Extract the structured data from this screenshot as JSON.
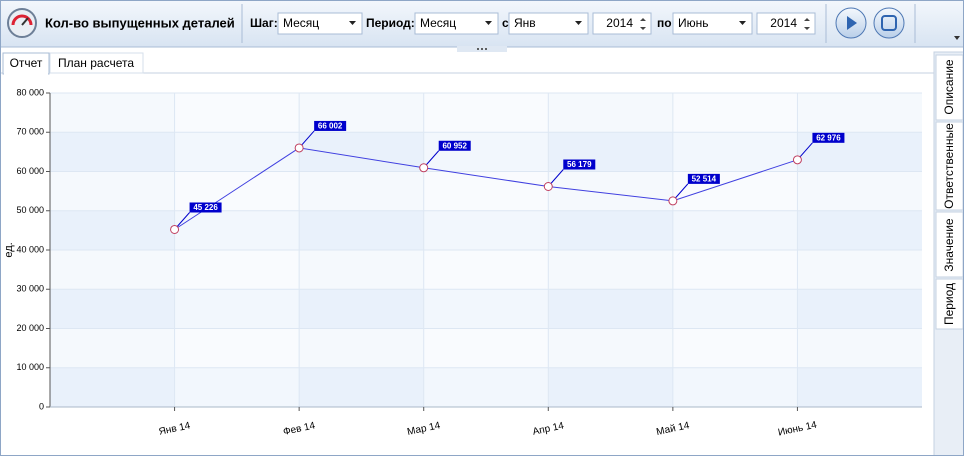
{
  "toolbar": {
    "title": "Кол-во выпущенных деталей",
    "step_label": "Шаг:",
    "step_value": "Месяц",
    "period_label": "Период:",
    "period_value": "Месяц",
    "from_label": "с",
    "from_month": "Янв",
    "from_year": "2014",
    "to_label": "по",
    "to_month": "Июнь",
    "to_year": "2014"
  },
  "tabs": [
    "Отчет",
    "План расчета"
  ],
  "side_tabs": [
    "Описание",
    "Ответственные",
    "Значение",
    "Период"
  ],
  "chart_data": {
    "type": "line",
    "y_label": "ед.",
    "categories": [
      "Янв 14",
      "Фев 14",
      "Мар 14",
      "Апр 14",
      "Май 14",
      "Июнь 14"
    ],
    "values": [
      45226,
      66002,
      60952,
      56179,
      52514,
      62976
    ],
    "value_labels": [
      "45 226",
      "66 002",
      "60 952",
      "56 179",
      "52 514",
      "62 976"
    ],
    "color": "#4040e0",
    "label_color": "#0000cc",
    "ylim": [
      0,
      80000
    ],
    "yticks": [
      0,
      {
        "value": 10000,
        "label": "10 000"
      },
      {
        "value": 20000,
        "label": "20 000"
      },
      {
        "value": 30000,
        "label": "30 000"
      },
      {
        "value": 40000,
        "label": "40 000"
      },
      {
        "value": 50000,
        "label": "50 000"
      },
      {
        "value": 60000,
        "label": "60 000"
      },
      {
        "value": 70000,
        "label": "70 000"
      },
      {
        "value": 80000,
        "label": "80 000"
      }
    ],
    "grid": true
  }
}
